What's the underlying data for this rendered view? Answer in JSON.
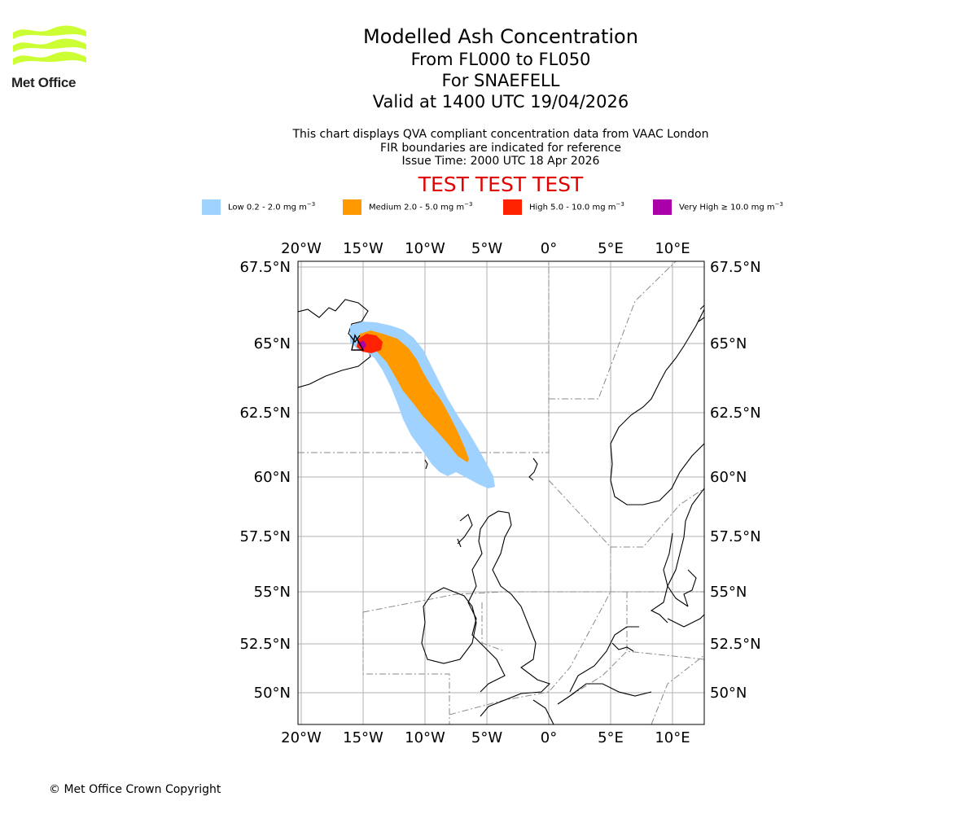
{
  "logo": {
    "text": "Met Office",
    "color": "#ccff33"
  },
  "title": {
    "line1": "Modelled Ash Concentration",
    "line2": "From FL000 to FL050",
    "line3": "For SNAEFELL",
    "line4": "Valid at 1400 UTC 19/04/2026"
  },
  "notes": {
    "line1": "This chart displays QVA compliant concentration data from VAAC London",
    "line2": "FIR boundaries are indicated for reference",
    "line3": "Issue Time: 2000 UTC 18 Apr 2026"
  },
  "test_banner": "TEST TEST TEST",
  "legend": [
    {
      "label": "Low 0.2 - 2.0 mg m",
      "exp": "−3",
      "color": "#a0d2ff"
    },
    {
      "label": "Medium 2.0 - 5.0 mg m",
      "exp": "−3",
      "color": "#ff9900"
    },
    {
      "label": "High 5.0 - 10.0 mg m",
      "exp": "−3",
      "color": "#ff2200"
    },
    {
      "label": "Very High  ≥  10.0 mg m",
      "exp": "−3",
      "color": "#aa00aa"
    }
  ],
  "map": {
    "lon_labels": [
      "20°W",
      "15°W",
      "10°W",
      "5°W",
      "0°",
      "5°E",
      "10°E"
    ],
    "lat_labels": [
      "67.5°N",
      "65°N",
      "62.5°N",
      "60°N",
      "57.5°N",
      "55°N",
      "52.5°N",
      "50°N"
    ],
    "volcano": "SNAEFELL"
  },
  "copyright": "© Met Office Crown Copyright"
}
